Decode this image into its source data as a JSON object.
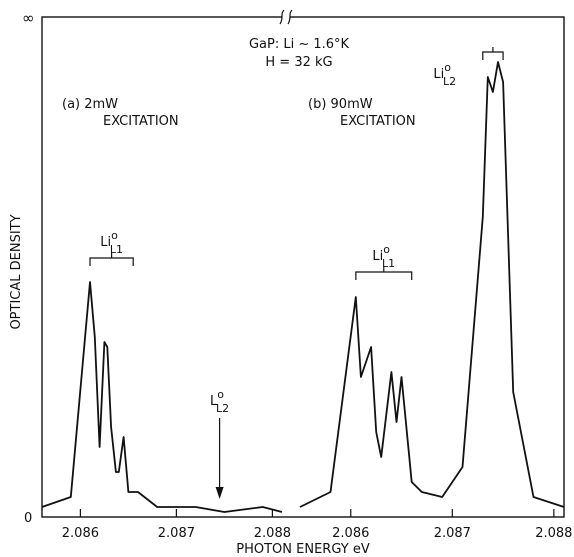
{
  "chart_data": {
    "type": "line",
    "xlabel": "PHOTON ENERGY eV",
    "ylabel": "OPTICAL DENSITY",
    "y_tick_labels": [
      "∞",
      "0"
    ],
    "annotation": {
      "line1": "GaP: Li ~ 1.6°K",
      "line2": "H = 32 kG"
    },
    "panels": [
      {
        "label_line1": "(a) 2mW",
        "label_line2": "EXCITATION",
        "xlim": [
          2.0856,
          2.0881
        ],
        "ticks": [
          2.086,
          2.087,
          2.088
        ],
        "tick_labels": [
          "2.086",
          "2.087",
          "2.088"
        ],
        "series": {
          "x": [
            2.0856,
            2.0859,
            2.0861,
            2.08615,
            2.0862,
            2.08625,
            2.08628,
            2.08632,
            2.08637,
            2.0864,
            2.08645,
            2.0865,
            2.0866,
            2.0868,
            2.0872,
            2.0875,
            2.0879,
            2.0881
          ],
          "y": [
            0.02,
            0.04,
            0.47,
            0.36,
            0.14,
            0.35,
            0.34,
            0.18,
            0.09,
            0.09,
            0.16,
            0.05,
            0.05,
            0.02,
            0.02,
            0.01,
            0.02,
            0.01
          ]
        },
        "groups": [
          {
            "text": "Li",
            "sup": "o",
            "sub": "L1",
            "x_from": 2.0861,
            "x_to": 2.08655
          }
        ],
        "arrow": {
          "text": "L",
          "sup": "o",
          "sub": "L2",
          "x": 2.08745
        }
      },
      {
        "label_line1": "(b) 90mW",
        "label_line2": "EXCITATION",
        "xlim": [
          2.0855,
          2.0881
        ],
        "ticks": [
          2.086,
          2.087,
          2.088
        ],
        "tick_labels": [
          "2.086",
          "2.087",
          "2.088"
        ],
        "series": {
          "x": [
            2.0855,
            2.0858,
            2.08605,
            2.0861,
            2.0862,
            2.08625,
            2.0863,
            2.0864,
            2.08645,
            2.0865,
            2.0866,
            2.0867,
            2.0869,
            2.0871,
            2.0873,
            2.08735,
            2.0874,
            2.08745,
            2.0875,
            2.0876,
            2.0878,
            2.0881
          ],
          "y": [
            0.02,
            0.05,
            0.44,
            0.28,
            0.34,
            0.17,
            0.12,
            0.29,
            0.19,
            0.28,
            0.07,
            0.05,
            0.04,
            0.1,
            0.6,
            0.88,
            0.85,
            0.91,
            0.87,
            0.25,
            0.04,
            0.02
          ]
        },
        "groups": [
          {
            "text": "Li",
            "sup": "o",
            "sub": "L1",
            "x_from": 2.08605,
            "x_to": 2.0866
          },
          {
            "text": "Li",
            "sup": "o",
            "sub": "L2",
            "x_from": 2.0873,
            "x_to": 2.0875
          }
        ]
      }
    ],
    "grid": false
  }
}
